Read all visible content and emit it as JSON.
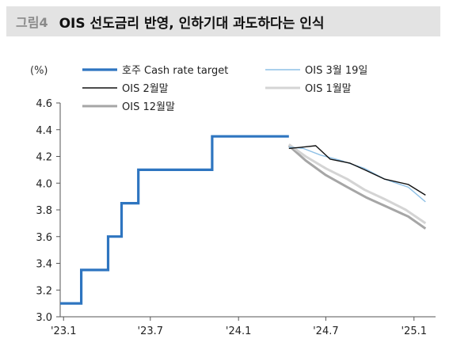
{
  "header": {
    "figure_label": "그림4",
    "title": "OIS 선도금리 반영, 인하기대 과도하다는 인식"
  },
  "chart_data": {
    "type": "line",
    "title": "OIS 선도금리 반영, 인하기대 과도하다는 인식",
    "ylabel": "(%)",
    "xlabel": "",
    "ylim": [
      3.0,
      4.6
    ],
    "yticks": [
      "3.0",
      "3.2",
      "3.4",
      "3.6",
      "3.8",
      "4.0",
      "4.2",
      "4.4",
      "4.6"
    ],
    "xticks": [
      {
        "label": "'23.1",
        "x": "2023-01-01"
      },
      {
        "label": "'23.7",
        "x": "2023-07-01"
      },
      {
        "label": "'24.1",
        "x": "2024-01-01"
      },
      {
        "label": "'24.7",
        "x": "2024-07-01"
      },
      {
        "label": "'25.1",
        "x": "2025-01-01"
      }
    ],
    "xlim": [
      "2022-12-25",
      "2025-02-15"
    ],
    "grid": false,
    "legend_position": "top",
    "series": [
      {
        "name": "호주 Cash rate target",
        "color": "#2e75c0",
        "width": 3.2,
        "step": true,
        "points": [
          [
            "2022-12-25",
            3.1
          ],
          [
            "2023-02-07",
            3.35
          ],
          [
            "2023-03-07",
            3.35
          ],
          [
            "2023-04-04",
            3.6
          ],
          [
            "2023-05-02",
            3.85
          ],
          [
            "2023-06-06",
            4.1
          ],
          [
            "2023-10-03",
            4.1
          ],
          [
            "2023-11-07",
            4.35
          ],
          [
            "2024-04-15",
            4.35
          ]
        ]
      },
      {
        "name": "OIS 3월 19일",
        "color": "#8ec0e6",
        "width": 1.4,
        "points": [
          [
            "2024-04-15",
            4.27
          ],
          [
            "2024-05-15",
            4.26
          ],
          [
            "2024-06-20",
            4.21
          ],
          [
            "2024-08-01",
            4.17
          ],
          [
            "2024-09-20",
            4.11
          ],
          [
            "2024-11-01",
            4.03
          ],
          [
            "2024-12-20",
            3.97
          ],
          [
            "2025-01-25",
            3.86
          ]
        ]
      },
      {
        "name": "OIS 2월말",
        "color": "#111111",
        "width": 1.4,
        "points": [
          [
            "2024-04-15",
            4.26
          ],
          [
            "2024-05-15",
            4.27
          ],
          [
            "2024-06-10",
            4.28
          ],
          [
            "2024-07-10",
            4.18
          ],
          [
            "2024-08-20",
            4.15
          ],
          [
            "2024-09-20",
            4.1
          ],
          [
            "2024-11-01",
            4.03
          ],
          [
            "2024-12-20",
            3.99
          ],
          [
            "2025-01-25",
            3.91
          ]
        ]
      },
      {
        "name": "OIS 1월말",
        "color": "#d4d4d4",
        "width": 3,
        "points": [
          [
            "2024-04-15",
            4.29
          ],
          [
            "2024-05-20",
            4.2
          ],
          [
            "2024-07-01",
            4.11
          ],
          [
            "2024-08-15",
            4.03
          ],
          [
            "2024-09-20",
            3.95
          ],
          [
            "2024-11-01",
            3.88
          ],
          [
            "2024-12-15",
            3.8
          ],
          [
            "2025-01-25",
            3.7
          ]
        ]
      },
      {
        "name": "OIS 12월말",
        "color": "#a6a6a6",
        "width": 3,
        "points": [
          [
            "2024-04-15",
            4.28
          ],
          [
            "2024-05-20",
            4.17
          ],
          [
            "2024-07-01",
            4.06
          ],
          [
            "2024-08-15",
            3.97
          ],
          [
            "2024-09-25",
            3.89
          ],
          [
            "2024-11-01",
            3.83
          ],
          [
            "2024-12-20",
            3.75
          ],
          [
            "2025-01-25",
            3.66
          ]
        ]
      }
    ]
  }
}
